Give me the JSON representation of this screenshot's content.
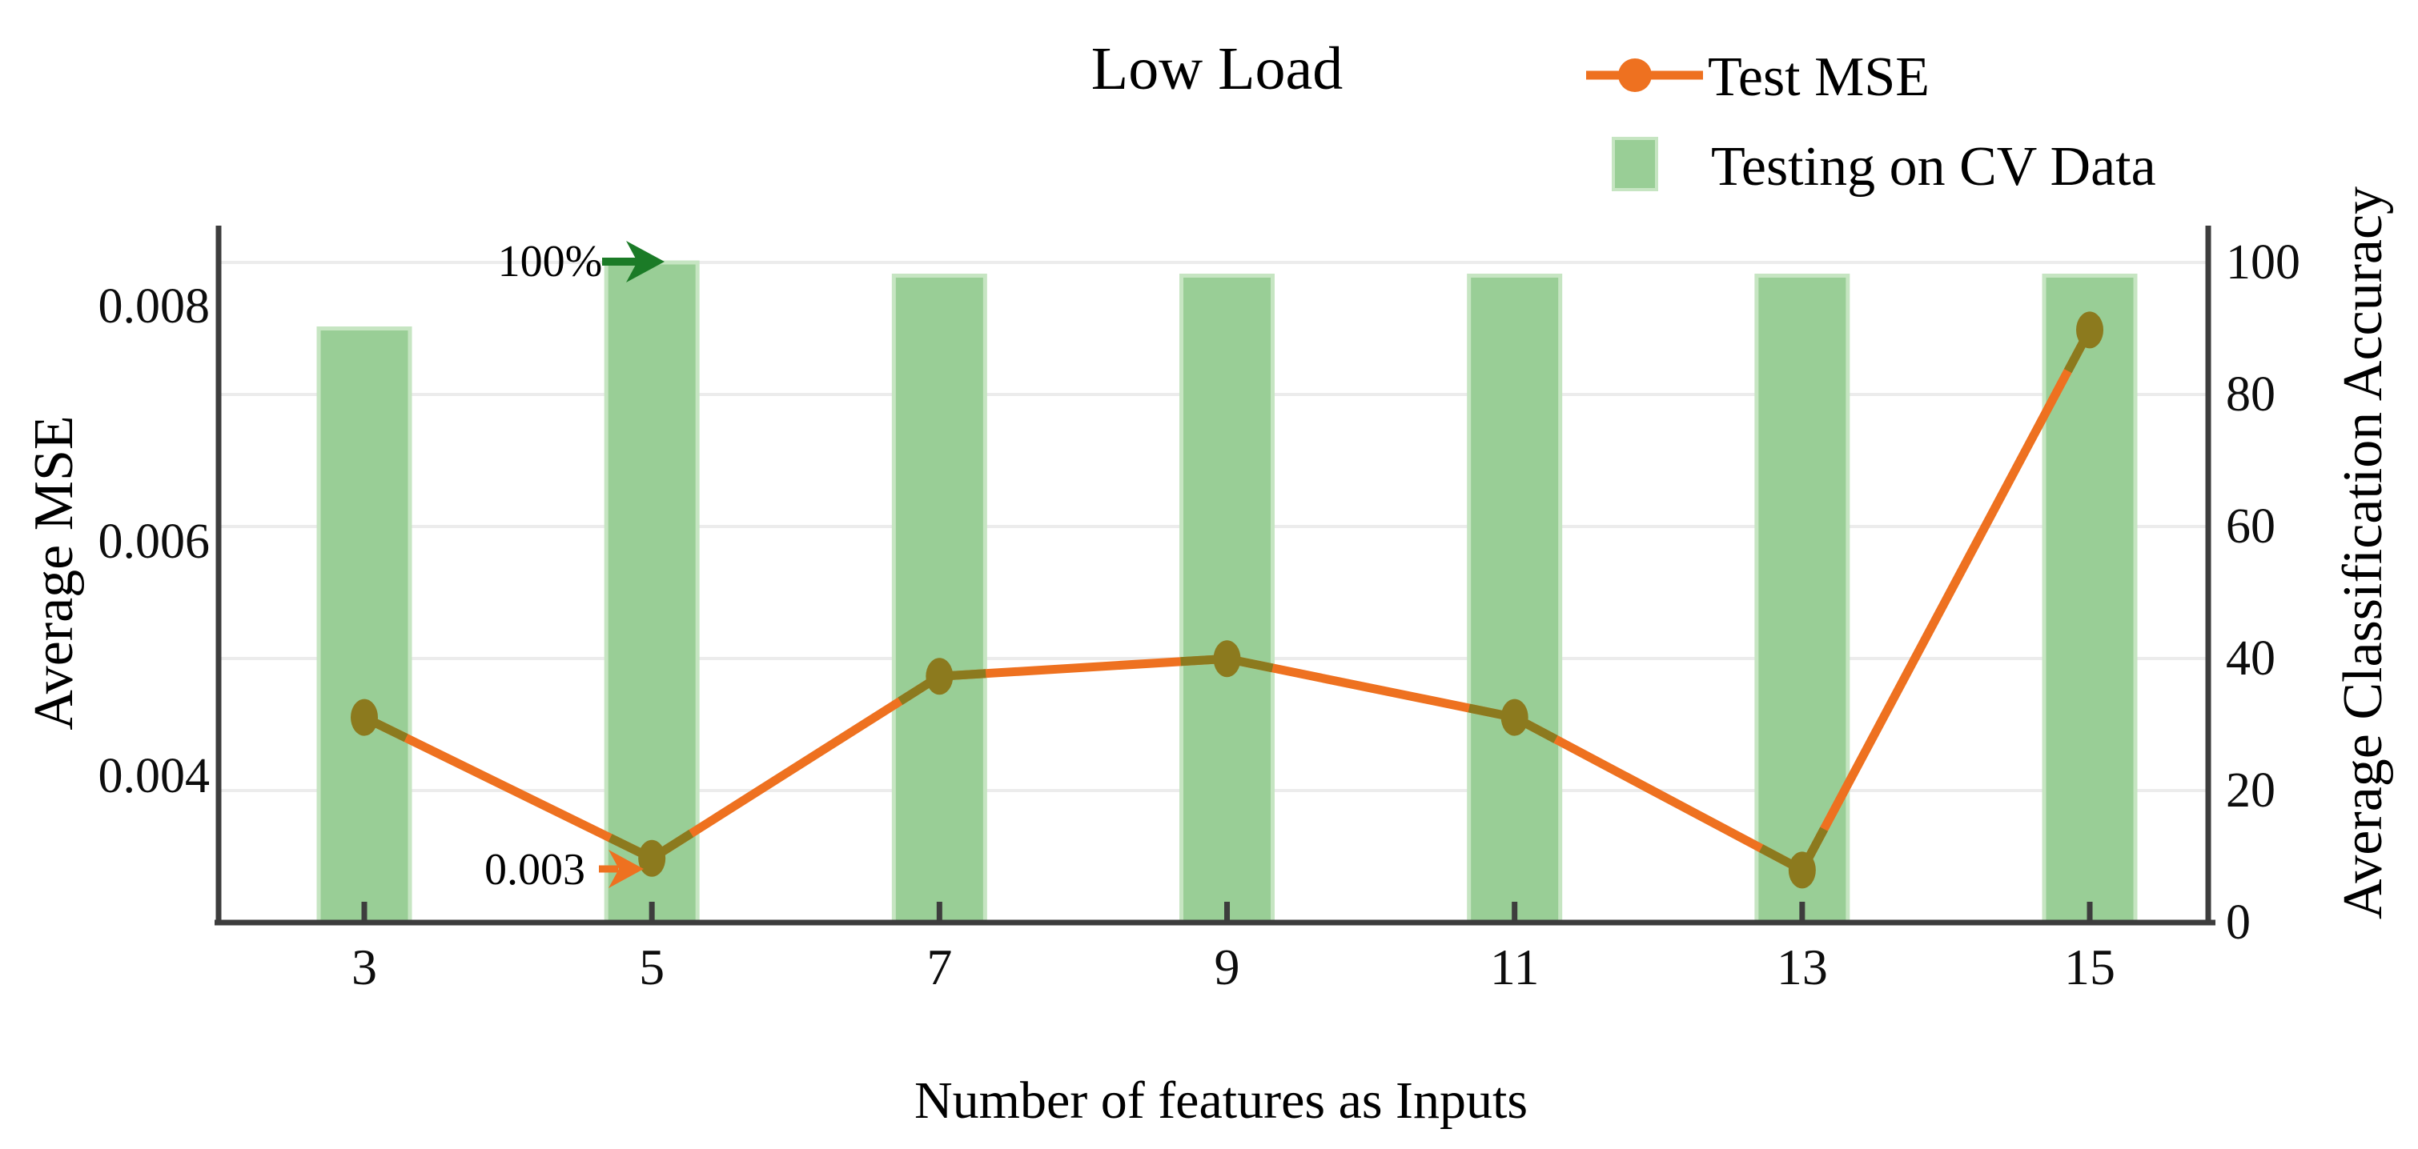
{
  "title": "Low Load",
  "legend": {
    "items": [
      {
        "label": "Test MSE",
        "type": "line-marker"
      },
      {
        "label": "Testing on CV Data",
        "type": "bar-swatch"
      }
    ]
  },
  "axes": {
    "x": {
      "title": "Number of features as Inputs",
      "tick_labels": [
        "3",
        "5",
        "7",
        "9",
        "11",
        "13",
        "15"
      ]
    },
    "y_left": {
      "title": "Average MSE",
      "tick_labels": [
        "0.008",
        "0.006",
        "0.004"
      ],
      "tick_values": [
        0.008,
        0.006,
        0.004
      ]
    },
    "y_right": {
      "title": "Average Classification Accuracy",
      "tick_labels": [
        "100",
        "80",
        "60",
        "40",
        "20",
        "0"
      ],
      "tick_values": [
        100,
        80,
        60,
        40,
        20,
        0
      ]
    }
  },
  "annotations": [
    {
      "id": "bar-100-percent",
      "text": "100%",
      "arrow": "right",
      "color": "#1b7b27"
    },
    {
      "id": "line-min-0003",
      "text": "0.003",
      "arrow": "right",
      "color": "#ee7120"
    }
  ],
  "colors": {
    "line": "#ee7120",
    "marker": "#8c7a1e",
    "bar": "#99ce96",
    "bar_edge": "#c6e5c2",
    "green_arrow": "#1b7b27",
    "grid": "#ececec",
    "axis": "#3d3d3d",
    "text": "#111111"
  },
  "chart_data": {
    "type": "combo",
    "title": "Low Load",
    "xlabel": "Number of features as Inputs",
    "ylabel_left": "Average MSE",
    "ylabel_right": "Average Classification Accuracy",
    "categories": [
      3,
      5,
      7,
      9,
      11,
      13,
      15
    ],
    "series": [
      {
        "name": "Test MSE",
        "type": "line",
        "axis": "left",
        "values": [
          0.0045,
          0.0033,
          0.00485,
          0.005,
          0.0045,
          0.0032,
          0.0078
        ],
        "color": "#ee7120",
        "marker": "ellipse",
        "marker_color": "#8c7a1e"
      },
      {
        "name": "Testing on CV Data",
        "type": "bar",
        "axis": "right",
        "values": [
          90,
          100,
          98,
          98,
          98,
          98,
          98
        ],
        "color": "#99ce96"
      }
    ],
    "y_left_ticks": [
      0.008,
      0.006,
      0.004
    ],
    "ylim_right": [
      0,
      100
    ],
    "grid": "horizontal-right-axis",
    "legend_position": "top-right-outside"
  }
}
